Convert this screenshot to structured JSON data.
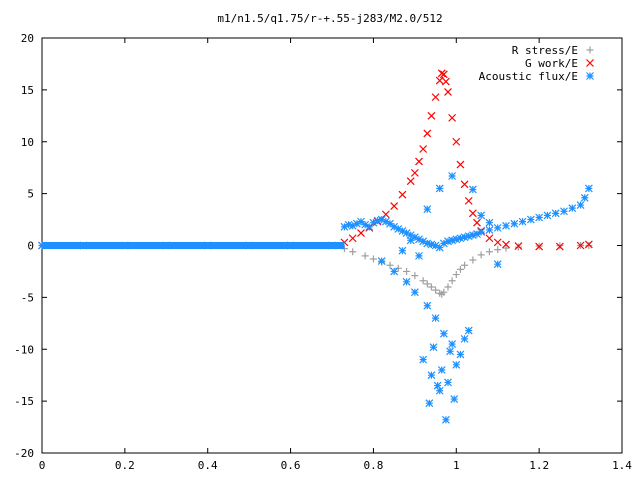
{
  "chart_data": {
    "type": "scatter",
    "title": "m1/n1.5/q1.75/r-+.55-j283/M2.0/512",
    "xlabel": "",
    "ylabel": "",
    "xlim": [
      0,
      1.4
    ],
    "ylim": [
      -20,
      20
    ],
    "x_ticks": [
      0,
      0.2,
      0.4,
      0.6,
      0.8,
      1,
      1.2,
      1.4
    ],
    "x_tick_labels": [
      "0",
      "0.2",
      "0.4",
      "0.6",
      "0.8",
      "1",
      "1.2",
      "1.4"
    ],
    "y_ticks": [
      -20,
      -15,
      -10,
      -5,
      0,
      5,
      10,
      15,
      20
    ],
    "y_tick_labels": [
      "-20",
      "-15",
      "-10",
      "-5",
      "0",
      "5",
      "10",
      "15",
      "20"
    ],
    "grid": false,
    "legend_position": "top-right",
    "series": [
      {
        "name": "R stress/E",
        "marker": "plus",
        "color": "#a0a0a0",
        "x": [
          0.0,
          0.1,
          0.2,
          0.3,
          0.4,
          0.5,
          0.6,
          0.7,
          0.73,
          0.75,
          0.78,
          0.8,
          0.82,
          0.84,
          0.86,
          0.88,
          0.9,
          0.92,
          0.93,
          0.94,
          0.95,
          0.96,
          0.965,
          0.97,
          0.98,
          0.99,
          1.0,
          1.01,
          1.02,
          1.04,
          1.06,
          1.08,
          1.1,
          1.12,
          1.15,
          1.2,
          1.25,
          1.3,
          1.32
        ],
        "y": [
          0,
          0,
          0,
          0,
          0,
          0,
          0,
          0,
          -0.3,
          -0.6,
          -1.0,
          -1.3,
          -1.6,
          -1.9,
          -2.2,
          -2.5,
          -2.9,
          -3.4,
          -3.7,
          -4.0,
          -4.3,
          -4.6,
          -4.7,
          -4.5,
          -4.0,
          -3.4,
          -2.8,
          -2.3,
          -1.9,
          -1.4,
          -0.9,
          -0.6,
          -0.4,
          -0.25,
          -0.15,
          -0.06,
          -0.02,
          0,
          0
        ]
      },
      {
        "name": "G work/E",
        "marker": "cross",
        "color": "#ff0000",
        "x": [
          0.0,
          0.1,
          0.2,
          0.3,
          0.4,
          0.5,
          0.6,
          0.7,
          0.73,
          0.75,
          0.77,
          0.79,
          0.81,
          0.83,
          0.85,
          0.87,
          0.89,
          0.9,
          0.91,
          0.92,
          0.93,
          0.94,
          0.95,
          0.96,
          0.965,
          0.97,
          0.975,
          0.98,
          0.99,
          1.0,
          1.01,
          1.02,
          1.03,
          1.04,
          1.05,
          1.06,
          1.08,
          1.1,
          1.12,
          1.15,
          1.2,
          1.25,
          1.3,
          1.32
        ],
        "y": [
          0,
          0,
          0,
          0,
          0,
          0,
          0,
          0,
          0.3,
          0.7,
          1.2,
          1.7,
          2.3,
          3.0,
          3.8,
          4.9,
          6.2,
          7.0,
          8.1,
          9.3,
          10.8,
          12.5,
          14.3,
          15.9,
          16.6,
          16.5,
          15.8,
          14.8,
          12.3,
          10.0,
          7.8,
          5.9,
          4.3,
          3.1,
          2.2,
          1.4,
          0.7,
          0.3,
          0.1,
          -0.05,
          -0.1,
          -0.1,
          0,
          0.1
        ]
      },
      {
        "name": "Acoustic flux/E",
        "marker": "star",
        "color": "#1e90ff",
        "x": [
          0.0,
          0.1,
          0.2,
          0.3,
          0.4,
          0.5,
          0.6,
          0.7,
          0.73,
          0.74,
          0.75,
          0.76,
          0.77,
          0.78,
          0.79,
          0.8,
          0.81,
          0.82,
          0.83,
          0.84,
          0.85,
          0.86,
          0.87,
          0.88,
          0.89,
          0.9,
          0.91,
          0.92,
          0.93,
          0.94,
          0.95,
          0.96,
          0.97,
          0.98,
          0.99,
          1.0,
          1.01,
          1.02,
          1.03,
          1.04,
          1.05,
          1.06,
          1.08,
          1.1,
          1.12,
          1.14,
          1.16,
          1.18,
          1.2,
          1.22,
          1.24,
          1.26,
          1.28,
          1.3,
          1.31,
          1.32,
          0.82,
          0.85,
          0.88,
          0.9,
          0.93,
          0.95,
          0.97,
          0.99,
          1.01,
          1.03,
          0.92,
          0.94,
          0.96,
          0.98,
          1.0,
          1.02,
          0.935,
          0.955,
          0.975,
          0.995,
          0.945,
          0.965,
          0.985,
          0.93,
          0.96,
          0.99,
          1.04,
          1.06,
          0.91,
          0.89,
          0.87,
          1.08,
          1.1
        ],
        "y": [
          0,
          0,
          0,
          0,
          0,
          0,
          0,
          0,
          1.8,
          2.0,
          1.9,
          2.1,
          2.3,
          2.0,
          1.8,
          2.2,
          2.4,
          2.5,
          2.3,
          2.1,
          1.8,
          1.6,
          1.4,
          1.2,
          1.0,
          0.8,
          0.6,
          0.4,
          0.2,
          0.1,
          0.0,
          -0.2,
          0.2,
          0.4,
          0.5,
          0.6,
          0.7,
          0.8,
          0.9,
          1.0,
          1.1,
          1.3,
          1.5,
          1.7,
          1.9,
          2.1,
          2.3,
          2.5,
          2.7,
          2.9,
          3.1,
          3.3,
          3.6,
          3.9,
          4.6,
          5.5,
          -1.5,
          -2.5,
          -3.5,
          -4.5,
          -5.8,
          -7.0,
          -8.5,
          -9.5,
          -10.5,
          -8.2,
          -11.0,
          -12.5,
          -14.0,
          -13.2,
          -11.5,
          -9.0,
          -15.2,
          -13.5,
          -16.8,
          -14.8,
          -9.8,
          -12.0,
          -10.2,
          3.5,
          5.5,
          6.7,
          5.4,
          2.9,
          -1.0,
          0.5,
          -0.5,
          2.2,
          -1.8
        ]
      }
    ]
  }
}
